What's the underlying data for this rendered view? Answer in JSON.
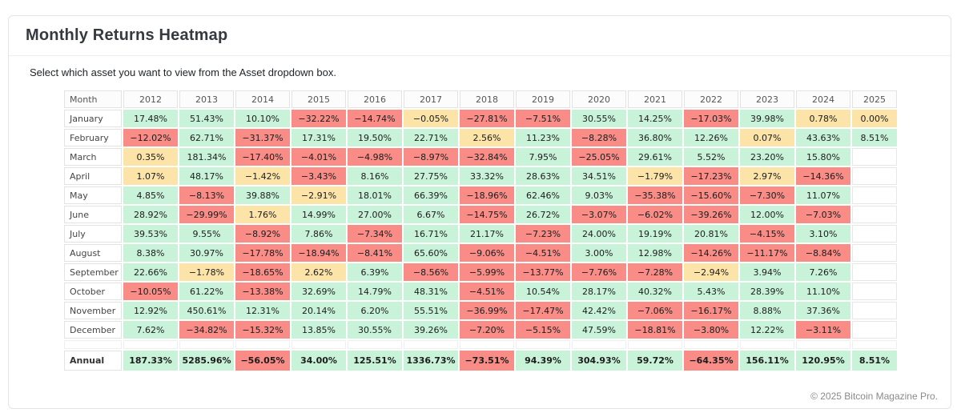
{
  "card": {
    "title": "Monthly Returns Heatmap",
    "description": "Select which asset you want to view from the Asset dropdown box.",
    "footer": "© 2025 Bitcoin Magazine Pro."
  },
  "colors": {
    "positive": "#c8f3d9",
    "negative": "#f98c86",
    "neutral": "#fce3a7"
  },
  "color_rule": {
    "green_min": 3,
    "red_max": -3
  },
  "chart_data": {
    "type": "heatmap",
    "title": "Monthly Returns Heatmap",
    "row_header": "Month",
    "columns": [
      "2012",
      "2013",
      "2014",
      "2015",
      "2016",
      "2017",
      "2018",
      "2019",
      "2020",
      "2021",
      "2022",
      "2023",
      "2024",
      "2025"
    ],
    "rows": [
      {
        "label": "January",
        "values": [
          "17.48%",
          "51.43%",
          "10.10%",
          "−32.22%",
          "−14.74%",
          "−0.05%",
          "−27.81%",
          "−7.51%",
          "30.55%",
          "14.25%",
          "−17.03%",
          "39.98%",
          "0.78%",
          "0.00%"
        ]
      },
      {
        "label": "February",
        "values": [
          "−12.02%",
          "62.71%",
          "−31.37%",
          "17.31%",
          "19.50%",
          "22.71%",
          "2.56%",
          "11.23%",
          "−8.28%",
          "36.80%",
          "12.26%",
          "0.07%",
          "43.63%",
          "8.51%"
        ]
      },
      {
        "label": "March",
        "values": [
          "0.35%",
          "181.34%",
          "−17.40%",
          "−4.01%",
          "−4.98%",
          "−8.97%",
          "−32.84%",
          "7.95%",
          "−25.05%",
          "29.61%",
          "5.52%",
          "23.20%",
          "15.80%",
          ""
        ]
      },
      {
        "label": "April",
        "values": [
          "1.07%",
          "48.17%",
          "−1.42%",
          "−3.43%",
          "8.16%",
          "27.75%",
          "33.32%",
          "28.63%",
          "34.51%",
          "−1.79%",
          "−17.23%",
          "2.97%",
          "−14.36%",
          ""
        ]
      },
      {
        "label": "May",
        "values": [
          "4.85%",
          "−8.13%",
          "39.88%",
          "−2.91%",
          "18.01%",
          "66.39%",
          "−18.96%",
          "62.46%",
          "9.03%",
          "−35.38%",
          "−15.60%",
          "−7.30%",
          "11.07%",
          ""
        ]
      },
      {
        "label": "June",
        "values": [
          "28.92%",
          "−29.99%",
          "1.76%",
          "14.99%",
          "27.00%",
          "6.67%",
          "−14.75%",
          "26.72%",
          "−3.07%",
          "−6.02%",
          "−39.26%",
          "12.00%",
          "−7.03%",
          ""
        ]
      },
      {
        "label": "July",
        "values": [
          "39.53%",
          "9.55%",
          "−8.92%",
          "7.86%",
          "−7.34%",
          "16.71%",
          "21.17%",
          "−7.23%",
          "24.00%",
          "19.19%",
          "20.81%",
          "−4.15%",
          "3.10%",
          ""
        ]
      },
      {
        "label": "August",
        "values": [
          "8.38%",
          "30.97%",
          "−17.78%",
          "−18.94%",
          "−8.41%",
          "65.60%",
          "−9.06%",
          "−4.51%",
          "3.00%",
          "12.98%",
          "−14.26%",
          "−11.17%",
          "−8.84%",
          ""
        ]
      },
      {
        "label": "September",
        "values": [
          "22.66%",
          "−1.78%",
          "−18.65%",
          "2.62%",
          "6.39%",
          "−8.56%",
          "−5.99%",
          "−13.77%",
          "−7.76%",
          "−7.28%",
          "−2.94%",
          "3.94%",
          "7.26%",
          ""
        ]
      },
      {
        "label": "October",
        "values": [
          "−10.05%",
          "61.22%",
          "−13.38%",
          "32.69%",
          "14.79%",
          "48.31%",
          "−4.51%",
          "10.54%",
          "28.17%",
          "40.32%",
          "5.43%",
          "28.39%",
          "11.10%",
          ""
        ]
      },
      {
        "label": "November",
        "values": [
          "12.92%",
          "450.61%",
          "12.31%",
          "20.14%",
          "6.20%",
          "55.51%",
          "−36.99%",
          "−17.47%",
          "42.42%",
          "−7.06%",
          "−16.17%",
          "8.88%",
          "37.36%",
          ""
        ]
      },
      {
        "label": "December",
        "values": [
          "7.62%",
          "−34.82%",
          "−15.32%",
          "13.85%",
          "30.55%",
          "39.26%",
          "−7.20%",
          "−5.15%",
          "47.59%",
          "−18.81%",
          "−3.80%",
          "12.22%",
          "−3.11%",
          ""
        ]
      }
    ],
    "annual": {
      "label": "Annual",
      "values": [
        "187.33%",
        "5285.96%",
        "−56.05%",
        "34.00%",
        "125.51%",
        "1336.73%",
        "−73.51%",
        "94.39%",
        "304.93%",
        "59.72%",
        "−64.35%",
        "156.11%",
        "120.95%",
        "8.51%"
      ]
    },
    "legend_position": "none",
    "grid": true
  }
}
